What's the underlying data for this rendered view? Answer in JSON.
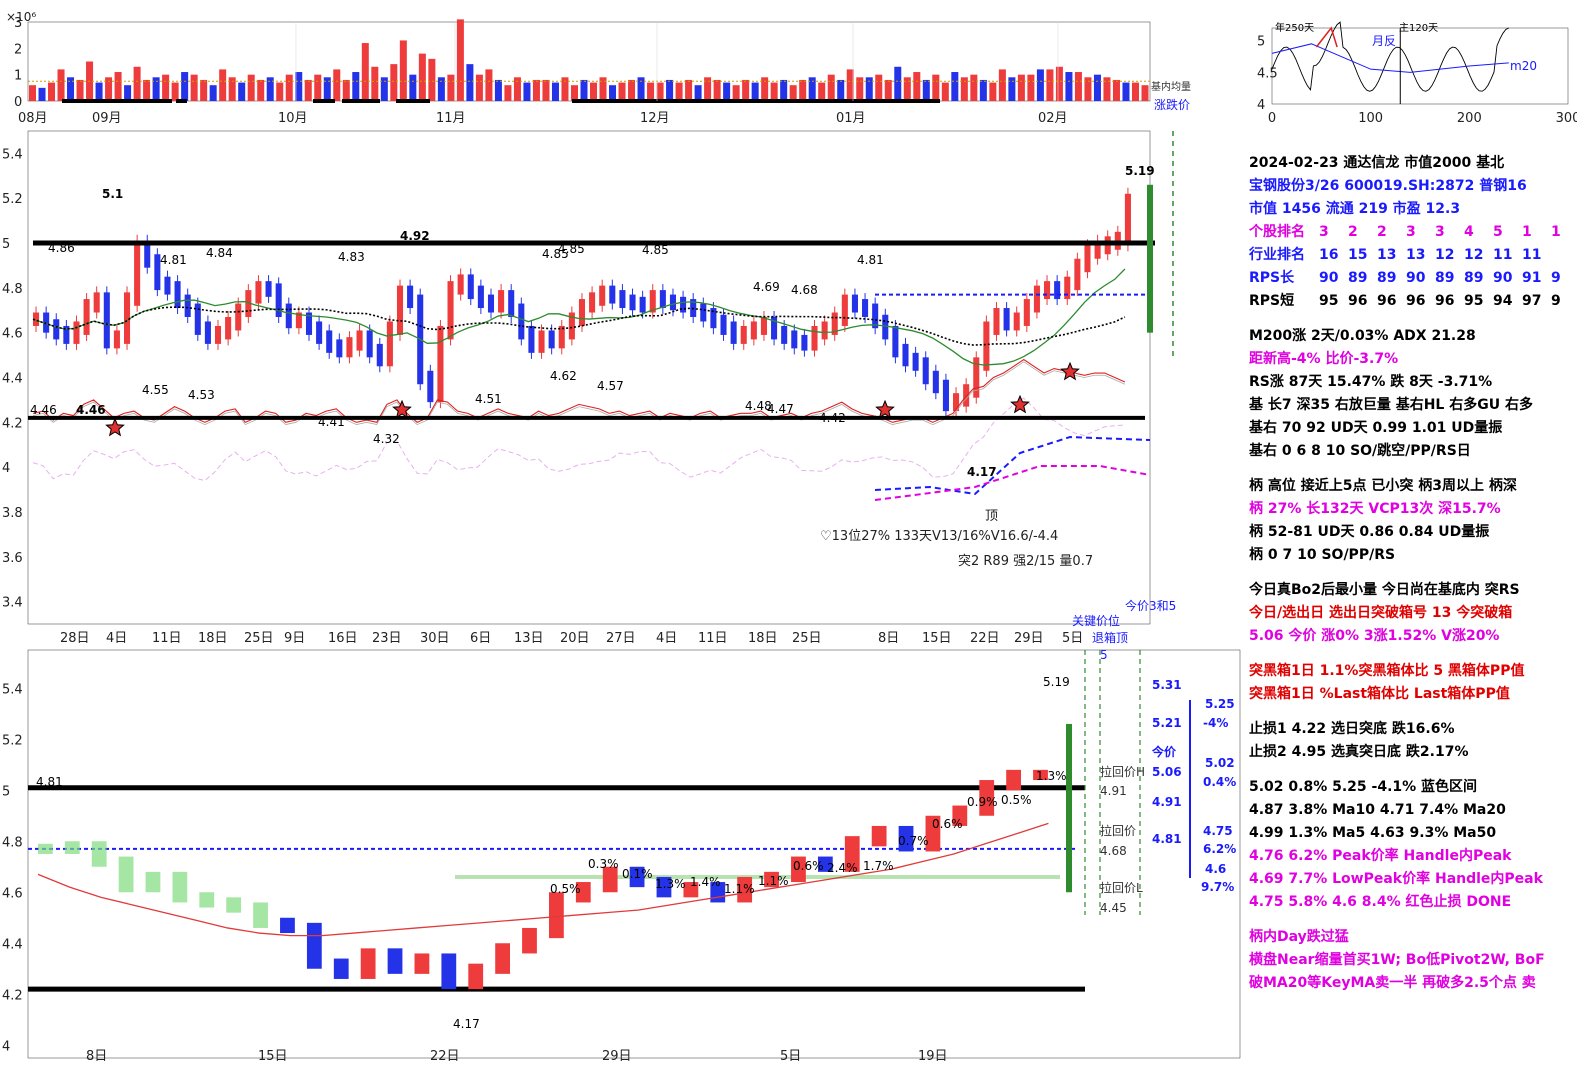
{
  "volume_panel": {
    "exponent_label": "×10⁶",
    "ylim": [
      0,
      3
    ],
    "y_ticks": [
      "3",
      "2",
      "1",
      "0"
    ],
    "month_ticks": [
      "08月",
      "09月",
      "10月",
      "11月",
      "12月",
      "01月",
      "02月"
    ],
    "legend_labels": [
      "基内均量",
      "涨跌价"
    ]
  },
  "main_panel": {
    "ylim": [
      3.3,
      5.5
    ],
    "y_ticks": [
      "5.4",
      "5.2",
      "5",
      "4.8",
      "4.6",
      "4.4",
      "4.2",
      "4",
      "3.8",
      "3.6",
      "3.4"
    ],
    "date_ticks": [
      "28日",
      "4日",
      "11日",
      "18日",
      "25日",
      "9日",
      "16日",
      "23日",
      "30日",
      "6日",
      "13日",
      "20日",
      "27日",
      "4日",
      "11日",
      "18日",
      "25日",
      "8日",
      "15日",
      "22日",
      "29日",
      "5日"
    ],
    "resistance_level": 5.0,
    "support_level": 4.22,
    "price_labels": [
      "4.86",
      "5.1",
      "4.81",
      "4.84",
      "4.92",
      "4.83",
      "4.85",
      "4.85",
      "4.85",
      "4.81",
      "4.69",
      "4.68",
      "4.55",
      "4.53",
      "4.62",
      "4.57",
      "4.51",
      "4.48",
      "4.47",
      "4.42",
      "4.41",
      "4.32",
      "4.46",
      "4.46",
      "4.17",
      "5.19"
    ],
    "annotation_lines": [
      "♡13位27%  133天V13/16%V16.6/-4.4",
      "突2 R89 强2/15 量0.7"
    ],
    "top_label": "顶",
    "footer_label": "今价3和5"
  },
  "lower_panel": {
    "ylim": [
      3.95,
      5.55
    ],
    "y_ticks": [
      "5.4",
      "5.2",
      "5",
      "4.8",
      "4.6",
      "4.4",
      "4.2",
      "4"
    ],
    "date_ticks": [
      "8日",
      "15日",
      "22日",
      "29日",
      "5日",
      "19日"
    ],
    "resistance_level": 5.01,
    "support_level": 4.22,
    "header_labels": [
      "关键价位",
      "退箱顶",
      "5"
    ],
    "price_labels": [
      "4.81",
      "4.17",
      "5.19"
    ],
    "pullback_labels": [
      "拉回价H",
      "4.91",
      "拉回价",
      "4.68",
      "拉回价L",
      "4.45"
    ],
    "right_ladder": [
      "5.31",
      "5.21",
      "今价",
      "5.06",
      "4.91",
      "4.81"
    ],
    "right_ladder_pct": [
      "5.25",
      "-4%",
      "5.02",
      "0.4%",
      "4.75",
      "6.2%",
      "4.6",
      "9.7%"
    ],
    "pct_labels": [
      "0.5%",
      "0.3%",
      "0.1%",
      "1.3%",
      "1.4%",
      "1.1%",
      "1.1%",
      "0.6%",
      "2.4%",
      "1.7%",
      "0.7%",
      "0.6%",
      "0.9%",
      "0.5%",
      "1.3%"
    ]
  },
  "inset_chart": {
    "ylim": [
      4,
      5.2
    ],
    "xlim": [
      0,
      300
    ],
    "x_ticks": [
      "0",
      "100",
      "200",
      "300"
    ],
    "y_ticks": [
      "5",
      "4.5",
      "4"
    ],
    "labels": [
      "年250天",
      "主120天",
      "月反",
      "m20"
    ]
  },
  "side_panel": {
    "header": "2024-02-23 通达信龙 市值2000 基北",
    "stock_line": "宝钢股份3/26 600019.SH:2872 普钢16",
    "mv_line": "市值 1456  流通 219 市盈 12.3",
    "rank_rows": [
      {
        "label": "个股排名",
        "values": [
          "3",
          "2",
          "2",
          "3",
          "3",
          "4",
          "5",
          "1",
          "1"
        ]
      },
      {
        "label": "行业排名",
        "values": [
          "16",
          "15",
          "13",
          "13",
          "12",
          "12",
          "11",
          "11"
        ]
      },
      {
        "label": "RPS长",
        "values": [
          "90",
          "89",
          "89",
          "90",
          "89",
          "89",
          "90",
          "91",
          "9"
        ]
      },
      {
        "label": "RPS短",
        "values": [
          "95",
          "96",
          "96",
          "96",
          "96",
          "95",
          "94",
          "97",
          "9"
        ]
      }
    ],
    "block2": [
      "M200涨 2天/0.03%  ADX 21.28",
      "距新高-4%  比价-3.7%",
      "RS涨 87天 15.47% 跌 8天 -3.71%",
      "基 长7 深35 右放巨量 基右HL 右多GU 右多",
      "基右 70 92 UD天 0.99 1.01 UD量振",
      "基右 0 6 8 10 SO/跳空/PP/RS日"
    ],
    "block3": [
      "柄 高位 接近上5点 已小突 柄3周以上 柄深",
      "柄 27% 长132天  VCP13次 深15.7%",
      "柄 52-81 UD天  0.86 0.84 UD量振",
      "柄 0 7 10 SO/PP/RS"
    ],
    "block4": [
      "今日真Bo2后最小量 今日尚在基底内 突RS",
      "今日/选出日  选出日突破箱号 13 今突破箱",
      "5.06 今价  涨0% 3涨1.52% V涨20%"
    ],
    "block5": [
      "突黑箱1日 1.1%突黑箱体比 5 黑箱体PP值",
      "突黑箱1日 %Last箱体比  Last箱体PP值"
    ],
    "block6": [
      "止损1 4.22 选日突底 跌16.6%",
      "止损2 4.95 选真突日底 跌2.17%"
    ],
    "block7": [
      "5.02 0.8% 5.25 -4.1% 蓝色区间",
      "  4.87 3.8% Ma10   4.71 7.4% Ma20",
      "  4.99 1.3% Ma5    4.63 9.3% Ma50",
      "4.76 6.2% Peak价率  Handle内Peak",
      "4.69 7.7% LowPeak价率  Handle内Peak",
      "4.75 5.8% 4.6 8.4% 红色止损 DONE"
    ],
    "block8": [
      "柄内Day跌过猛",
      "横盘Near缩量首买1W; Bo低Pivot2W, BoF",
      "破MA20等KeyMA卖一半 再破多2.5个点 卖"
    ]
  },
  "chart_data": [
    {
      "type": "bar",
      "title": "",
      "ylabel": "×10⁶",
      "ylim": [
        0,
        3
      ],
      "values": [
        0.6,
        0.5,
        0.7,
        1.2,
        0.9,
        0.8,
        1.5,
        0.7,
        0.9,
        1.1,
        0.6,
        1.3,
        0.8,
        0.9,
        1.0,
        0.7,
        1.1,
        1.0,
        0.8,
        0.6,
        1.2,
        0.9,
        0.7,
        1.0,
        0.8,
        0.9,
        0.7,
        1.0,
        1.1,
        0.8,
        1.0,
        0.9,
        1.2,
        0.8,
        1.1,
        2.2,
        1.3,
        0.9,
        1.4,
        2.3,
        1.0,
        1.8,
        1.6,
        0.9,
        1.0,
        3.1,
        1.4,
        1.0,
        1.2,
        0.8,
        0.6,
        0.9,
        0.7,
        0.8,
        0.8,
        0.7,
        0.9,
        0.6,
        0.8,
        0.7,
        0.9,
        0.6,
        0.7,
        0.8,
        0.9,
        0.7,
        0.7,
        0.8,
        0.7,
        0.8,
        0.6,
        0.9,
        0.8,
        0.7,
        0.6,
        0.8,
        0.7,
        0.9,
        0.7,
        0.8,
        0.6,
        0.8,
        0.9,
        0.7,
        1.0,
        0.8,
        1.2,
        0.9,
        0.9,
        1.0,
        0.8,
        1.3,
        0.9,
        1.1,
        0.8,
        1.0,
        0.7,
        1.1,
        0.9,
        1.0,
        0.8,
        0.7,
        1.2,
        0.9,
        1.0,
        1.0,
        1.2,
        1.2,
        1.3,
        1.1,
        1.1,
        0.9,
        1.0,
        0.9,
        0.8,
        0.7,
        0.7,
        0.6
      ]
    },
    {
      "type": "line",
      "title": "",
      "series": [
        {
          "values": [
            4.66,
            4.63,
            4.6,
            4.58,
            4.62,
            4.72,
            4.75,
            4.56,
            4.58,
            4.75,
            4.98,
            4.92,
            4.82,
            4.8,
            4.74,
            4.7,
            4.62,
            4.58,
            4.6,
            4.64,
            4.7,
            4.76,
            4.8,
            4.79,
            4.7,
            4.65,
            4.66,
            4.62,
            4.58,
            4.54,
            4.52,
            4.55,
            4.58,
            4.52,
            4.48,
            4.62,
            4.78,
            4.74,
            4.4,
            4.32,
            4.6,
            4.8,
            4.83,
            4.78,
            4.74,
            4.72,
            4.76,
            4.7,
            4.6,
            4.54,
            4.58,
            4.56,
            4.6,
            4.66,
            4.72,
            4.75,
            4.78,
            4.76,
            4.74,
            4.73,
            4.72,
            4.76,
            4.74,
            4.73,
            4.72,
            4.7,
            4.68,
            4.65,
            4.62,
            4.58,
            4.6,
            4.62,
            4.64,
            4.6,
            4.58,
            4.56,
            4.55,
            4.6,
            4.62,
            4.66,
            4.74,
            4.72,
            4.7,
            4.65,
            4.6,
            4.52,
            4.48,
            4.46,
            4.4,
            4.36,
            4.28,
            4.3,
            4.34,
            4.46,
            4.62,
            4.68,
            4.64,
            4.66,
            4.72,
            4.78,
            4.8,
            4.78,
            4.82,
            4.9,
            4.96,
            4.98,
            5.0,
            5.02,
            5.19
          ]
        },
        {
          "values": [
            4.24,
            4.25,
            4.21,
            4.24,
            4.23,
            4.28,
            4.3,
            4.26,
            4.22,
            4.24,
            4.25,
            4.22,
            4.21,
            4.24,
            4.27,
            4.25,
            4.22,
            4.2,
            4.22,
            4.25,
            4.26,
            4.2,
            4.22,
            4.25,
            4.24,
            4.2,
            4.21,
            4.24,
            4.23,
            4.25,
            4.26,
            4.22,
            4.2,
            4.21,
            4.2,
            4.28,
            4.3,
            4.24,
            4.2,
            4.22,
            4.3,
            4.29,
            4.25,
            4.24,
            4.22,
            4.24,
            4.26,
            4.24,
            4.23,
            4.22,
            4.25,
            4.23,
            4.24,
            4.26,
            4.28,
            4.27,
            4.26,
            4.24,
            4.25,
            4.23,
            4.24,
            4.25,
            4.22,
            4.24,
            4.23,
            4.22,
            4.24,
            4.25,
            4.22,
            4.23,
            4.24,
            4.24,
            4.25,
            4.22,
            4.23,
            4.24,
            4.22,
            4.24,
            4.25,
            4.27,
            4.29,
            4.26,
            4.24,
            4.23,
            4.22,
            4.2,
            4.21,
            4.22,
            4.22,
            4.2,
            4.22,
            4.24,
            4.3,
            4.35,
            4.36,
            4.4,
            4.42,
            4.45,
            4.48,
            4.45,
            4.42,
            4.44,
            4.43,
            4.42,
            4.41,
            4.42,
            4.42,
            4.4,
            4.38
          ]
        }
      ]
    },
    {
      "type": "line",
      "title": "",
      "series": [
        {
          "values": [
            4.77,
            4.78,
            4.72,
            4.62,
            4.66,
            4.58,
            4.56,
            4.54,
            4.48,
            4.46,
            4.32,
            4.28,
            4.36,
            4.3,
            4.34,
            4.24,
            4.3,
            4.38,
            4.44,
            4.58,
            4.62,
            4.68,
            4.64,
            4.6,
            4.62,
            4.58,
            4.64,
            4.66,
            4.72,
            4.7,
            4.8,
            4.84,
            4.78,
            4.88,
            4.92,
            5.02,
            5.06,
            5.06
          ]
        },
        {
          "values": [
            4.67,
            4.62,
            4.58,
            4.55,
            4.52,
            4.49,
            4.46,
            4.44,
            4.43,
            4.43,
            4.44,
            4.45,
            4.46,
            4.47,
            4.48,
            4.49,
            4.5,
            4.51,
            4.52,
            4.53,
            4.55,
            4.57,
            4.59,
            4.61,
            4.63,
            4.65,
            4.67,
            4.69,
            4.72,
            4.75,
            4.79,
            4.83,
            4.87
          ]
        }
      ]
    }
  ]
}
